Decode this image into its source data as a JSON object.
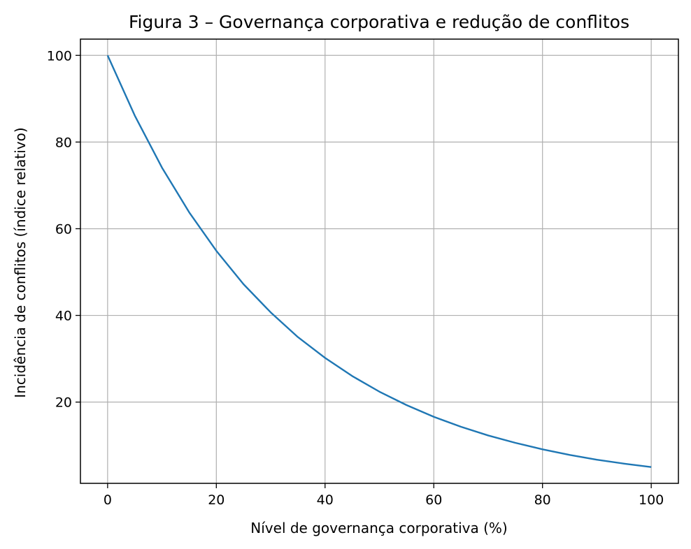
{
  "chart_data": {
    "type": "line",
    "title": "Figura 3 – Governança corporativa e redução de conflitos",
    "xlabel": "Nível de governança corporativa (%)",
    "ylabel": "Incidência de conflitos (índice relativo)",
    "xlim": [
      -5,
      105
    ],
    "ylim": [
      1.25,
      103.75
    ],
    "xticks": [
      0,
      20,
      40,
      60,
      80,
      100
    ],
    "yticks": [
      20,
      40,
      60,
      80,
      100
    ],
    "grid": true,
    "series": [
      {
        "color": "#1f77b4",
        "x": [
          0,
          5,
          10,
          15,
          20,
          25,
          30,
          35,
          40,
          45,
          50,
          55,
          60,
          65,
          70,
          75,
          80,
          85,
          90,
          95,
          100
        ],
        "y": [
          100,
          86.1,
          74.1,
          63.8,
          54.9,
          47.2,
          40.7,
          35.0,
          30.2,
          26.0,
          22.4,
          19.3,
          16.6,
          14.3,
          12.3,
          10.6,
          9.1,
          7.8,
          6.7,
          5.8,
          5.0
        ]
      }
    ]
  }
}
